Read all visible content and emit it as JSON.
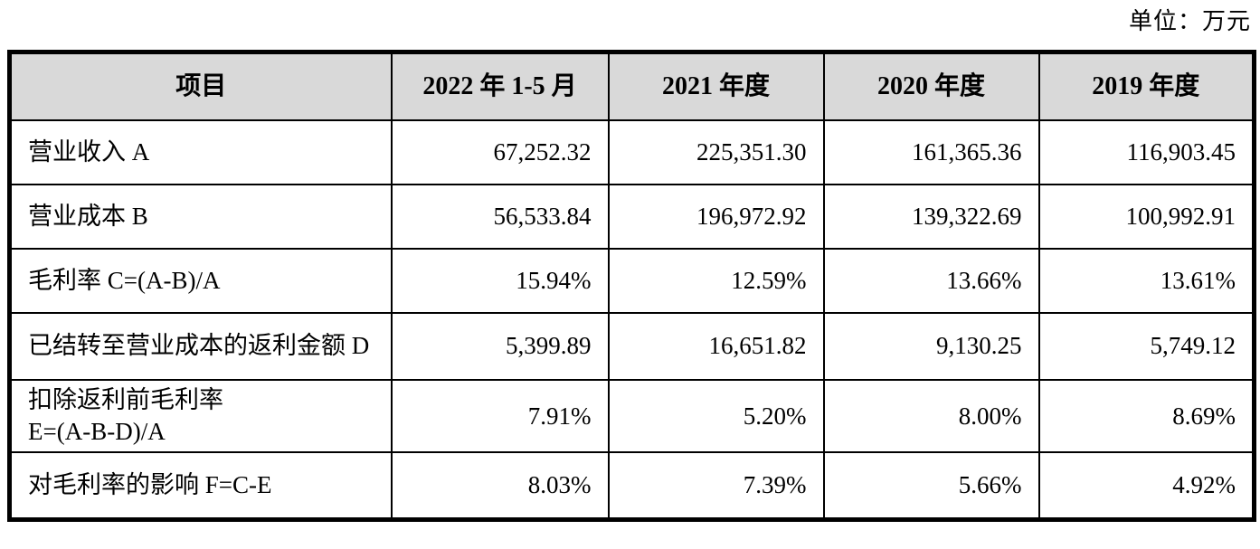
{
  "unit_label": "单位：万元",
  "colors": {
    "header_bg": "#d9d9d9",
    "border": "#000000",
    "text": "#000000"
  },
  "table": {
    "headers": [
      "项目",
      "2022 年 1-5 月",
      "2021 年度",
      "2020 年度",
      "2019 年度"
    ],
    "rows": [
      {
        "label": "营业收入 A",
        "values": [
          "67,252.32",
          "225,351.30",
          "161,365.36",
          "116,903.45"
        ]
      },
      {
        "label": "营业成本 B",
        "values": [
          "56,533.84",
          "196,972.92",
          "139,322.69",
          "100,992.91"
        ]
      },
      {
        "label": "毛利率 C=(A-B)/A",
        "values": [
          "15.94%",
          "12.59%",
          "13.66%",
          "13.61%"
        ]
      },
      {
        "label": "已结转至营业成本的返利金额 D",
        "values": [
          "5,399.89",
          "16,651.82",
          "9,130.25",
          "5,749.12"
        ]
      },
      {
        "label": "扣除返利前毛利率\nE=(A-B-D)/A",
        "values": [
          "7.91%",
          "5.20%",
          "8.00%",
          "8.69%"
        ]
      },
      {
        "label": "对毛利率的影响 F=C-E",
        "values": [
          "8.03%",
          "7.39%",
          "5.66%",
          "4.92%"
        ]
      }
    ]
  }
}
